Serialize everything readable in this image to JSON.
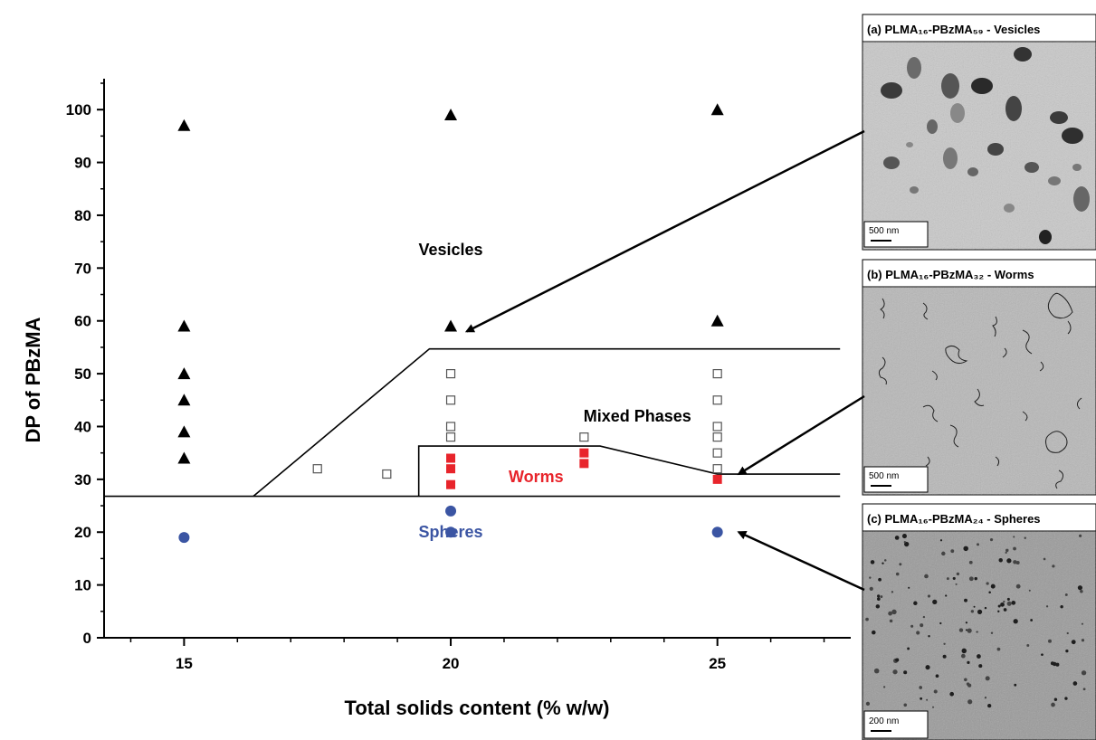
{
  "chart_data": {
    "type": "scatter",
    "title": "",
    "xlabel": "Total solids content (% w/w)",
    "ylabel": "DP of PBzMA",
    "xlim": [
      13.5,
      27.5
    ],
    "ylim": [
      0,
      105
    ],
    "x_ticks": [
      15,
      20,
      25
    ],
    "y_ticks": [
      0,
      10,
      20,
      30,
      40,
      50,
      60,
      70,
      80,
      90,
      100
    ],
    "grid": false,
    "series": [
      {
        "marker": "triangle",
        "color": "#000000",
        "points": [
          [
            15,
            97
          ],
          [
            15,
            59
          ],
          [
            15,
            50
          ],
          [
            15,
            45
          ],
          [
            15,
            39
          ],
          [
            15,
            34
          ],
          [
            20,
            99
          ],
          [
            20,
            59
          ],
          [
            25,
            100
          ],
          [
            25,
            60
          ]
        ]
      },
      {
        "marker": "open-square",
        "color": "#555555",
        "points": [
          [
            17.5,
            32
          ],
          [
            18.8,
            31
          ],
          [
            20,
            50
          ],
          [
            20,
            45
          ],
          [
            20,
            40
          ],
          [
            20,
            38
          ],
          [
            22.5,
            38
          ],
          [
            25,
            50
          ],
          [
            25,
            45
          ],
          [
            25,
            40
          ],
          [
            25,
            38
          ],
          [
            25,
            35
          ],
          [
            25,
            32
          ]
        ]
      },
      {
        "marker": "filled-square",
        "color": "#e8242b",
        "points": [
          [
            20,
            34
          ],
          [
            20,
            32
          ],
          [
            20,
            29
          ],
          [
            22.5,
            35
          ],
          [
            22.5,
            33
          ],
          [
            25,
            30
          ]
        ]
      },
      {
        "marker": "circle",
        "color": "#3b55a3",
        "points": [
          [
            15,
            19
          ],
          [
            20,
            24
          ],
          [
            20,
            20
          ],
          [
            25,
            20
          ]
        ]
      }
    ],
    "region_labels": [
      {
        "text": "Vesicles",
        "x": 20,
        "y": 73.5,
        "color": "#000000"
      },
      {
        "text": "Mixed Phases",
        "x": 23.5,
        "y": 42,
        "color": "#000000"
      },
      {
        "text": "Worms",
        "x": 21.6,
        "y": 30.5,
        "color": "#e8242b"
      },
      {
        "text": "Spheres",
        "x": 20,
        "y": 20,
        "color": "#3b55a3"
      }
    ],
    "boundaries": [
      [
        [
          13.5,
          26.8
        ],
        [
          27.3,
          26.8
        ]
      ],
      [
        [
          16.3,
          26.8
        ],
        [
          19.6,
          54.7
        ],
        [
          27.3,
          54.7
        ]
      ],
      [
        [
          19.4,
          26.8
        ],
        [
          19.4,
          36.3
        ],
        [
          22.8,
          36.3
        ],
        [
          25,
          31
        ],
        [
          27.3,
          31
        ]
      ]
    ]
  },
  "panels": [
    {
      "title": "(a) PLMA₁₆-PBzMA₅₉ - Vesicles",
      "scale": "500 nm"
    },
    {
      "title": "(b) PLMA₁₆-PBzMA₃₂ - Worms",
      "scale": "500 nm"
    },
    {
      "title": "(c) PLMA₁₆-PBzMA₂₄ - Spheres",
      "scale": "200 nm"
    }
  ],
  "arrows": [
    {
      "from_panel": 0,
      "to_point": [
        20.3,
        58
      ]
    },
    {
      "from_panel": 1,
      "to_point": [
        25.4,
        31
      ]
    },
    {
      "from_panel": 2,
      "to_point": [
        25.4,
        20
      ]
    }
  ]
}
